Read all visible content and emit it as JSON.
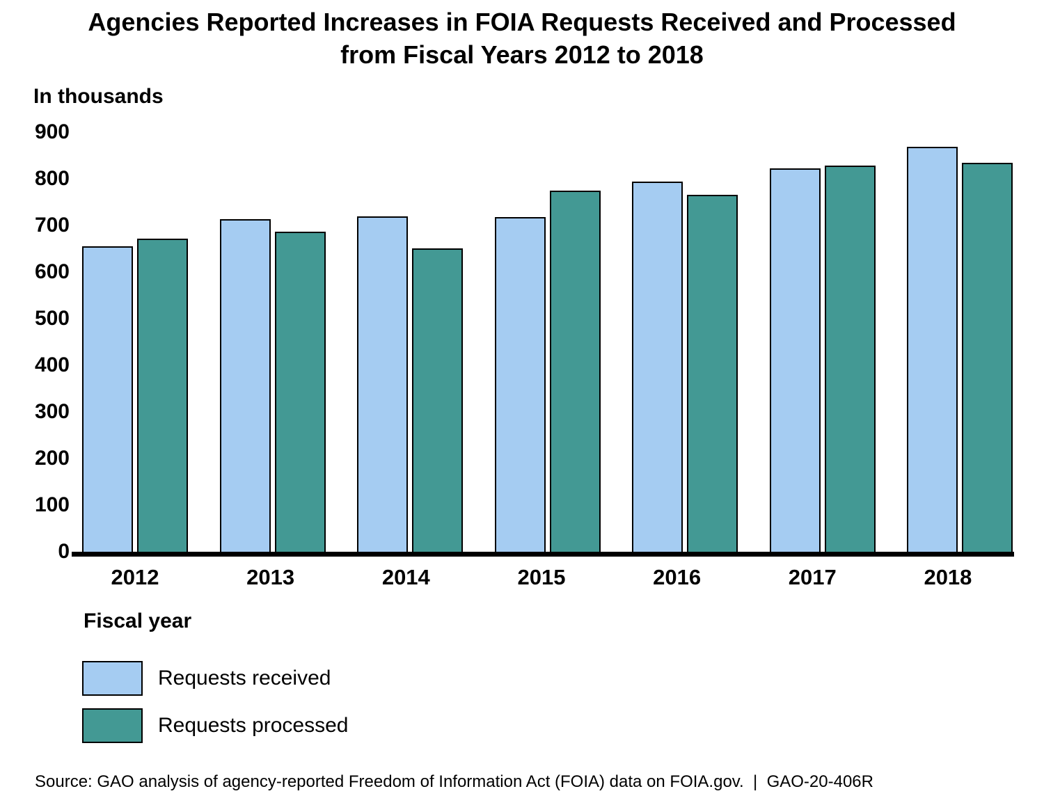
{
  "chart_data": {
    "type": "bar",
    "title": "Agencies Reported Increases in FOIA Requests Received and Processed from Fiscal Years 2012 to 2018",
    "ylabel": "In thousands",
    "xlabel": "Fiscal year",
    "categories": [
      "2012",
      "2013",
      "2014",
      "2015",
      "2016",
      "2017",
      "2018"
    ],
    "series": [
      {
        "name": "Requests received",
        "color": "#A5CCF2",
        "values": [
          656,
          713,
          719,
          718,
          794,
          823,
          869
        ]
      },
      {
        "name": "Requests processed",
        "color": "#439994",
        "values": [
          671,
          686,
          651,
          775,
          766,
          829,
          835
        ]
      }
    ],
    "ylim": [
      0,
      900
    ],
    "yticks": [
      900,
      800,
      700,
      600,
      500,
      400,
      300,
      200,
      100,
      0
    ],
    "grid": false,
    "legend_position": "bottom-left"
  },
  "source_note": "Source: GAO analysis of agency-reported Freedom of Information Act (FOIA) data on FOIA.gov.  |  GAO-20-406R",
  "colors": {
    "background": "#FFFFFF",
    "axis": "#000000",
    "text": "#000000",
    "received": "#A5CCF2",
    "processed": "#439994"
  }
}
